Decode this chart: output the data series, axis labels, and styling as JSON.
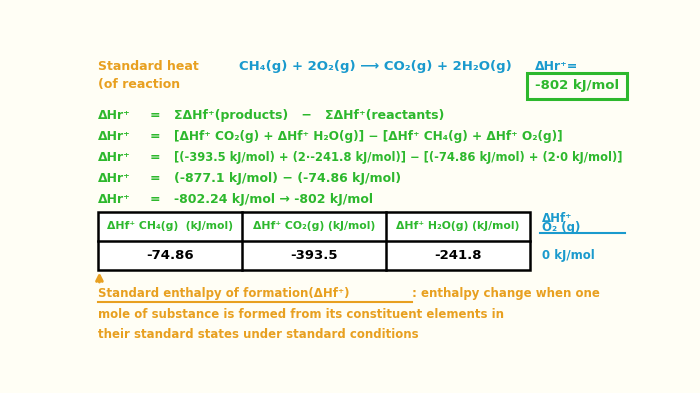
{
  "bg_color": "#fffef5",
  "orange": "#e8a020",
  "green": "#2db82d",
  "blue": "#1a9acd",
  "figsize": [
    7.0,
    3.93
  ],
  "dpi": 100,
  "title_line1": "Standard heat",
  "title_line2": "(of reaction",
  "reaction": "CH₄(g) + 2O₂(g) ⟶ CO₂(g) + 2H₂O(g)",
  "delta_hr_label": "ΔHr⁺=",
  "delta_hr_value": "-802 kJ/mol",
  "eq_left": "ΔHr⁺",
  "eq_sign": "=",
  "eq_line1_right": "ΣΔHf⁺(products)   −   ΣΔHf⁺(reactants)",
  "eq_line2_right": "[ΔHf⁺ CO₂(g) + ΔHf⁺ H₂O(g)] − [ΔHf⁺ CH₄(g) + ΔHf⁺ O₂(g)]",
  "eq_line3_right": "[(-393.5 kJ/mol) + (2·-241.8 kJ/mol)] − [(-74.86 kJ/mol) + (2·0 kJ/mol)]",
  "eq_line4_right": "(-877.1 kJ/mol) − (-74.86 kJ/mol)",
  "eq_line5_right": "-802.24 kJ/mol → -802 kJ/mol",
  "table_headers": [
    "ΔHf⁺ CH₄(g)  (kJ/mol)",
    "ΔHf⁺ CO₂(g) (kJ/mol)",
    "ΔHf⁺ H₂O(g) (kJ/mol)"
  ],
  "table_values": [
    "-74.86",
    "-393.5",
    "-241.8"
  ],
  "extra_header_line1": "ΔHf⁺",
  "extra_header_line2": "O₂ (g)",
  "extra_value": "0 kJ/mol",
  "footnote_underlined": "Standard enthalpy of formation(ΔHf⁺)",
  "footnote_rest": ": enthalpy change when one",
  "footnote_line2": "mole of substance is formed from its constituent elements in",
  "footnote_line3": "their standard states under standard conditions"
}
